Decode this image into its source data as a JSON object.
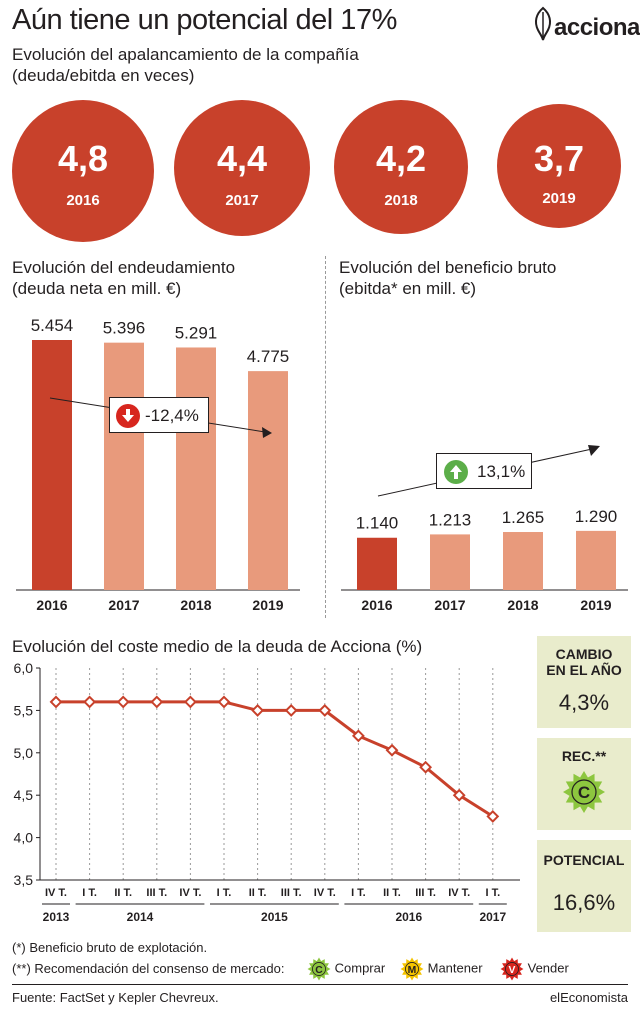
{
  "header": {
    "title": "Aún tiene un potencial del 17%",
    "subtitle_line1": "Evolución del apalancamiento de la compañía",
    "subtitle_line2": "(deuda/ebitda en veces)",
    "logo_text": "acciona"
  },
  "leverage": [
    {
      "value": "4,8",
      "year": "2016"
    },
    {
      "value": "4,4",
      "year": "2017"
    },
    {
      "value": "4,2",
      "year": "2018"
    },
    {
      "value": "3,7",
      "year": "2019"
    }
  ],
  "debt_section": {
    "title_line1": "Evolución del endeudamiento",
    "title_line2": "(deuda neta en mill. €)",
    "change_label": "-12,4%"
  },
  "ebitda_section": {
    "title_line1": "Evolución del beneficio bruto",
    "title_line2": "(ebitda* en mill. €)",
    "change_label": "13,1%"
  },
  "cost_section": {
    "title": "Evolución del coste medio de la deuda de Acciona (%)"
  },
  "sidebar": {
    "change_label": "CAMBIO EN EL AÑO",
    "change_value": "4,3%",
    "rec_label": "REC.**",
    "rec_badge": "C",
    "potential_label": "POTENCIAL",
    "potential_value": "16,6%"
  },
  "footnotes": {
    "note1": "(*) Beneficio bruto de explotación.",
    "note2": "(**) Recomendación del consenso de mercado:",
    "buy_badge": "C",
    "buy_label": "Comprar",
    "hold_badge": "M",
    "hold_label": "Mantener",
    "sell_badge": "V",
    "sell_label": "Vender",
    "source": "Fuente: FactSet y Kepler Chevreux.",
    "brand": "elEconomista"
  },
  "colors": {
    "dark_red": "#c8412b",
    "salmon": "#e89a7c",
    "line": "#c8412b",
    "box_bg": "#e9eccc",
    "buy": "#8dc63f",
    "hold": "#f5c400",
    "sell": "#d7261e",
    "up_arrow": "#5cae49",
    "down_arrow": "#d7261e"
  },
  "chart_data": [
    {
      "type": "bar",
      "categories": [
        "2016",
        "2017",
        "2018",
        "2019"
      ],
      "values": [
        5454,
        5396,
        5291,
        4775
      ],
      "value_labels": [
        "5.454",
        "5.396",
        "5.291",
        "4.775"
      ],
      "ylim": [
        0,
        5454
      ]
    },
    {
      "type": "bar",
      "categories": [
        "2016",
        "2017",
        "2018",
        "2019"
      ],
      "values": [
        1140,
        1213,
        1265,
        1290
      ],
      "value_labels": [
        "1.140",
        "1.213",
        "1.265",
        "1.290"
      ],
      "ylim": [
        0,
        5454
      ]
    },
    {
      "type": "line",
      "x": [
        "IV T. 2013",
        "I T. 2014",
        "II T. 2014",
        "III T. 2014",
        "IV T. 2014",
        "I T. 2015",
        "II T. 2015",
        "III T. 2015",
        "IV T. 2015",
        "I T. 2016",
        "II T. 2016",
        "III T. 2016",
        "IV T. 2016",
        "I T. 2017"
      ],
      "values": [
        5.6,
        5.6,
        5.6,
        5.6,
        5.6,
        5.6,
        5.5,
        5.5,
        5.5,
        5.2,
        5.03,
        4.83,
        4.5,
        4.25
      ],
      "quarter_labels": [
        "IV T.",
        "I T.",
        "II T.",
        "III T.",
        "IV T.",
        "I T.",
        "II T.",
        "III T.",
        "IV T.",
        "I T.",
        "II T.",
        "III T.",
        "IV T.",
        "I T."
      ],
      "year_labels": [
        "2013",
        "2014",
        "2015",
        "2016",
        "2017"
      ],
      "y_ticks": [
        "6,0",
        "5,5",
        "5,0",
        "4,5",
        "4,0",
        "3,5"
      ],
      "ylim": [
        3.5,
        6.0
      ],
      "grid": "vertical dashed"
    }
  ]
}
